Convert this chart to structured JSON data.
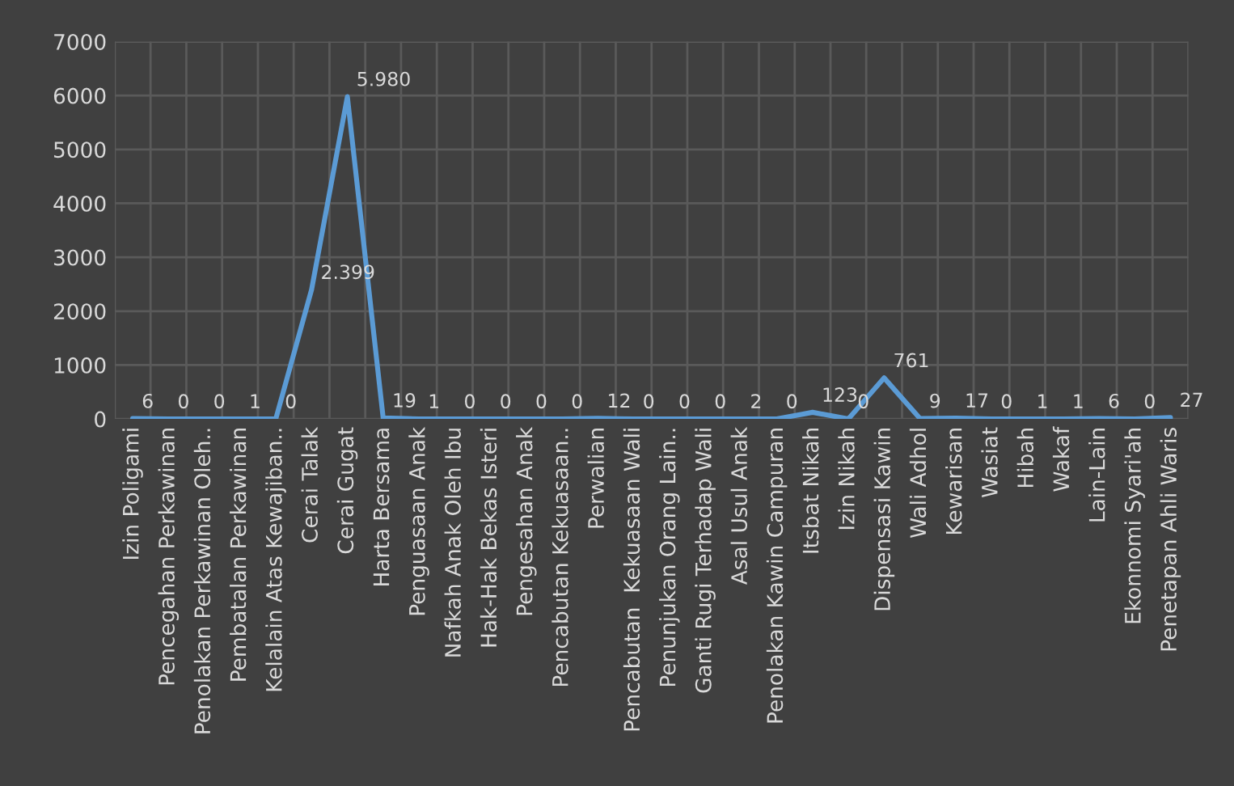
{
  "chart_data": {
    "type": "line",
    "categories": [
      "Izin Poligami",
      "Pencegahan Perkawinan",
      "Penolakan Perkawinan Oleh..",
      "Pembatalan Perkawinan",
      "Kelalain Atas Kewajiban..",
      "Cerai Talak",
      "Cerai Gugat",
      "Harta Bersama",
      "Penguasaan Anak",
      "Nafkah Anak Oleh Ibu",
      "Hak-Hak Bekas Isteri",
      "Pengesahan Anak",
      "Pencabutan Kekuasaan..",
      "Perwalian",
      "Pencabutan  Kekuasaan Wali",
      "Penunjukan Orang Lain..",
      "Ganti Rugi Terhadap Wali",
      "Asal Usul Anak",
      "Penolakan Kawin Campuran",
      "Itsbat Nikah",
      "Izin Nikah",
      "Dispensasi Kawin",
      "Wali Adhol",
      "Kewarisan",
      "Wasiat",
      "Hibah",
      "Wakaf",
      "Lain-Lain",
      "Ekonnomi Syari'ah",
      "Penetapan Ahli Waris"
    ],
    "series": [
      {
        "color": "#5b9bd5",
        "values": [
          6,
          0,
          0,
          1,
          0,
          2399,
          5980,
          19,
          1,
          0,
          0,
          0,
          0,
          12,
          0,
          0,
          0,
          2,
          0,
          123,
          0,
          761,
          9,
          17,
          0,
          1,
          1,
          6,
          0,
          27
        ],
        "value_labels": [
          "6",
          "0",
          "0",
          "1",
          "0",
          "2.399",
          "5.980",
          "19",
          "1",
          "0",
          "0",
          "0",
          "0",
          "12",
          "0",
          "0",
          "0",
          "2",
          "0",
          "123",
          "0",
          "761",
          "9",
          "17",
          "0",
          "1",
          "1",
          "6",
          "0",
          "27"
        ]
      }
    ],
    "ylim": [
      0,
      7000
    ],
    "yticks": [
      0,
      1000,
      2000,
      3000,
      4000,
      5000,
      6000,
      7000
    ],
    "grid": true,
    "marker": "none",
    "line_style": "solid"
  }
}
